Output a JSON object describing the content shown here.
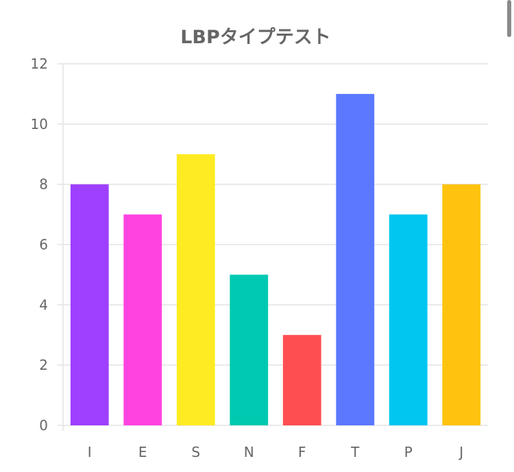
{
  "chart_data": {
    "type": "bar",
    "title": "LBPタイプテスト",
    "categories": [
      "I",
      "E",
      "S",
      "N",
      "F",
      "T",
      "P",
      "J"
    ],
    "values": [
      8,
      7,
      9,
      5,
      3,
      11,
      7,
      8
    ],
    "colors": [
      "#9f3fff",
      "#ff43e1",
      "#ffeb22",
      "#00c9b1",
      "#ff4e52",
      "#5b78ff",
      "#00c6f0",
      "#ffc30f"
    ],
    "ylim": [
      0,
      12
    ],
    "yticks": [
      0,
      2,
      4,
      6,
      8,
      10,
      12
    ],
    "grid": true,
    "xlabel": "",
    "ylabel": ""
  }
}
